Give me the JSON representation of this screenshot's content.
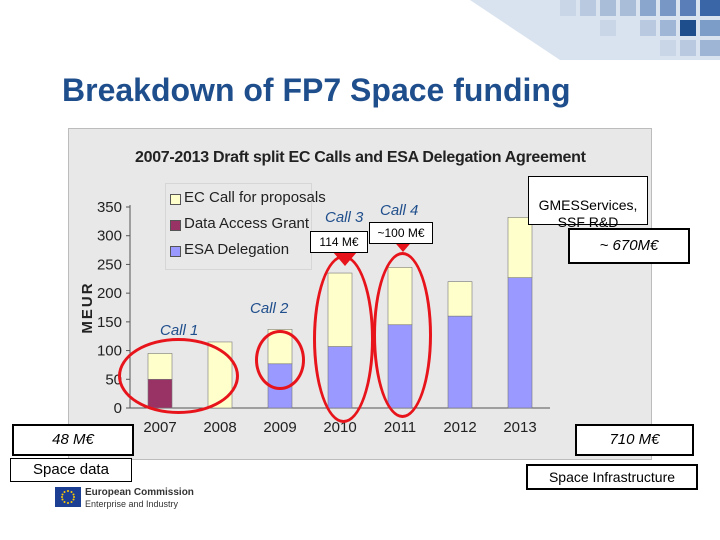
{
  "slide": {
    "title": "Breakdown of FP7 Space funding"
  },
  "chart_data": {
    "type": "bar",
    "stacked": true,
    "title": "2007-2013 Draft split EC Calls and ESA Delegation Agreement",
    "ylabel": "MEUR",
    "ylim": [
      0,
      350
    ],
    "yticks": [
      0,
      50,
      100,
      150,
      200,
      250,
      300,
      350
    ],
    "categories": [
      "2007",
      "2008",
      "2009",
      "2010",
      "2011",
      "2012",
      "2013"
    ],
    "series": [
      {
        "name": "ESA Delegation",
        "color": "#9999ff",
        "values": [
          0,
          0,
          77,
          107,
          145,
          160,
          227
        ]
      },
      {
        "name": "Data Access Grant",
        "color": "#993366",
        "values": [
          50,
          0,
          0,
          0,
          0,
          0,
          0
        ]
      },
      {
        "name": "EC Call for proposals",
        "color": "#ffffcc",
        "values": [
          45,
          115,
          60,
          128,
          100,
          60,
          105
        ]
      }
    ],
    "legend_order": [
      "EC Call for proposals",
      "Data Access Grant",
      "ESA Delegation"
    ],
    "legend_position": "top-left",
    "grid": false
  },
  "annotations": {
    "call1": "Call 1",
    "call2": "Call 2",
    "call3": "Call 3",
    "call4": "Call 4",
    "call3_amount": "114 M€",
    "call4_amount": "~100 M€",
    "gmes": "GMESServices,\nSSF R&D",
    "gmes_amount": "~ 670M€",
    "left_amount": "48 M€",
    "left_label": "Space data",
    "right_amount": "710 M€",
    "right_label": "Space Infrastructure"
  },
  "logo": {
    "line1": "European Commission",
    "line2": "Enterprise and Industry"
  },
  "colors": {
    "title": "#1f4e8c",
    "highlight": "#e8141b"
  }
}
